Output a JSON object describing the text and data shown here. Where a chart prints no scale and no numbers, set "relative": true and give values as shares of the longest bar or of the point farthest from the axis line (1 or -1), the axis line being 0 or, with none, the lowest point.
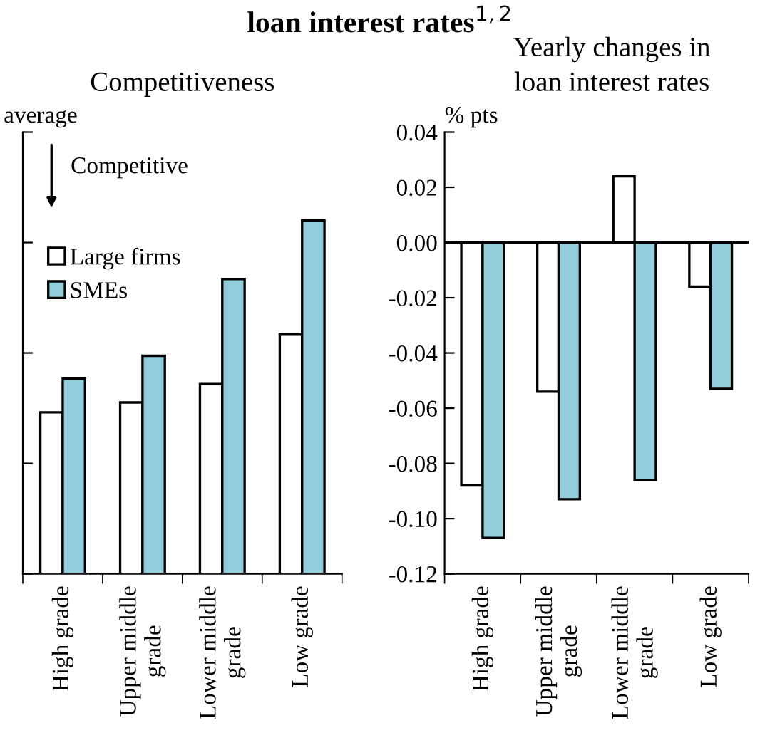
{
  "chart_data": [
    {
      "type": "bar",
      "title": "loan interest rates$^{1,2}$",
      "subtitle": "Competitiveness",
      "relative": true,
      "categories": [
        "High grade",
        "Upper middle\ngrade",
        "Lower middle\ngrade",
        "Low grade"
      ],
      "series": [
        {
          "name": "Large firms",
          "color": "#ffffff",
          "values": [
            0.457,
            0.485,
            0.537,
            0.677
          ]
        },
        {
          "name": "SMEs",
          "color": "#92cddc",
          "values": [
            0.552,
            0.617,
            0.834,
            1.0
          ]
        }
      ],
      "annotations": [
        "average",
        "Competitive"
      ],
      "legend": "left",
      "grid": false,
      "tick_labels": "x"
    },
    {
      "type": "bar",
      "subtitle": "Yearly changes in\nloan interest rates",
      "ylabel": "% pts",
      "categories": [
        "High grade",
        "Upper middle\ngrade",
        "Lower middle\ngrade",
        "Low grade"
      ],
      "series": [
        {
          "color": "#ffffff",
          "values": [
            -0.088,
            -0.054,
            0.024,
            -0.016
          ]
        },
        {
          "color": "#92cddc",
          "values": [
            -0.107,
            -0.093,
            -0.086,
            -0.053
          ]
        }
      ],
      "ylim": [
        -0.12,
        0.04
      ],
      "yticks": [
        -0.12,
        {
          "value": -0.1,
          "label": "-0.10"
        },
        -0.08,
        -0.06,
        -0.04,
        -0.02,
        {
          "value": 0,
          "label": "0.00"
        },
        0.02,
        0.04
      ],
      "ref_lines": [
        {
          "axis": "y",
          "value": 0,
          "color": "#000000"
        }
      ],
      "grid": false
    }
  ]
}
